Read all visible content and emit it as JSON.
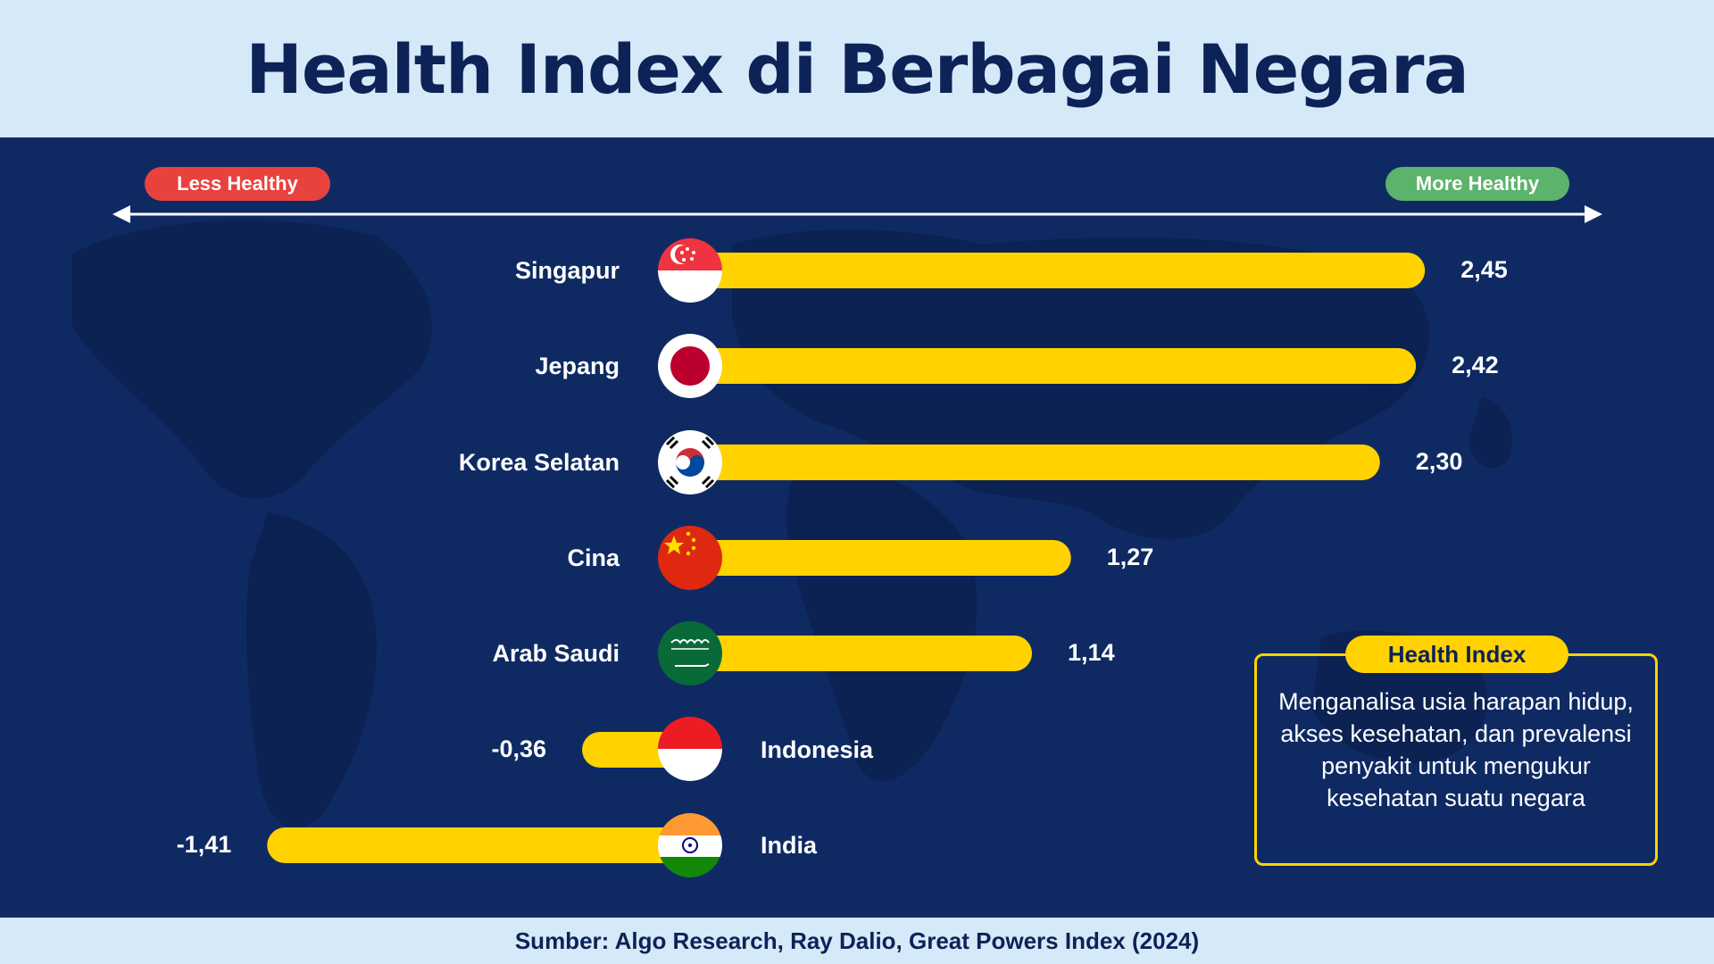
{
  "header": {
    "title": "Health Index di Berbagai Negara"
  },
  "scale": {
    "less_label": "Less Healthy",
    "more_label": "More Healthy"
  },
  "info": {
    "title": "Health Index",
    "text": "Menganalisa usia harapan hidup, akses kesehatan, dan prevalensi penyakit untuk mengukur kesehatan suatu negara"
  },
  "footer": {
    "source": "Sumber: Algo Research, Ray Dalio, Great Powers Index (2024)"
  },
  "colors": {
    "bar": "#ffd200",
    "panel": "#0f2a63",
    "header_bg": "#d6e9f8",
    "title": "#0d2257",
    "less": "#e8423f",
    "more": "#5cb36b"
  },
  "chart_data": {
    "type": "bar",
    "orientation": "horizontal",
    "title": "Health Index di Berbagai Negara",
    "xlabel": "",
    "ylabel": "",
    "xlim": [
      -1.5,
      2.5
    ],
    "grid": false,
    "categories": [
      "Singapur",
      "Jepang",
      "Korea Selatan",
      "Cina",
      "Arab Saudi",
      "Indonesia",
      "India"
    ],
    "values": [
      2.45,
      2.42,
      2.3,
      1.27,
      1.14,
      -0.36,
      -1.41
    ],
    "value_labels": [
      "2,45",
      "2,42",
      "2,30",
      "1,27",
      "1,14",
      "-0,36",
      "-1,41"
    ],
    "flags": [
      "singapore-flag",
      "japan-flag",
      "south-korea-flag",
      "china-flag",
      "saudi-arabia-flag",
      "indonesia-flag",
      "india-flag"
    ]
  }
}
